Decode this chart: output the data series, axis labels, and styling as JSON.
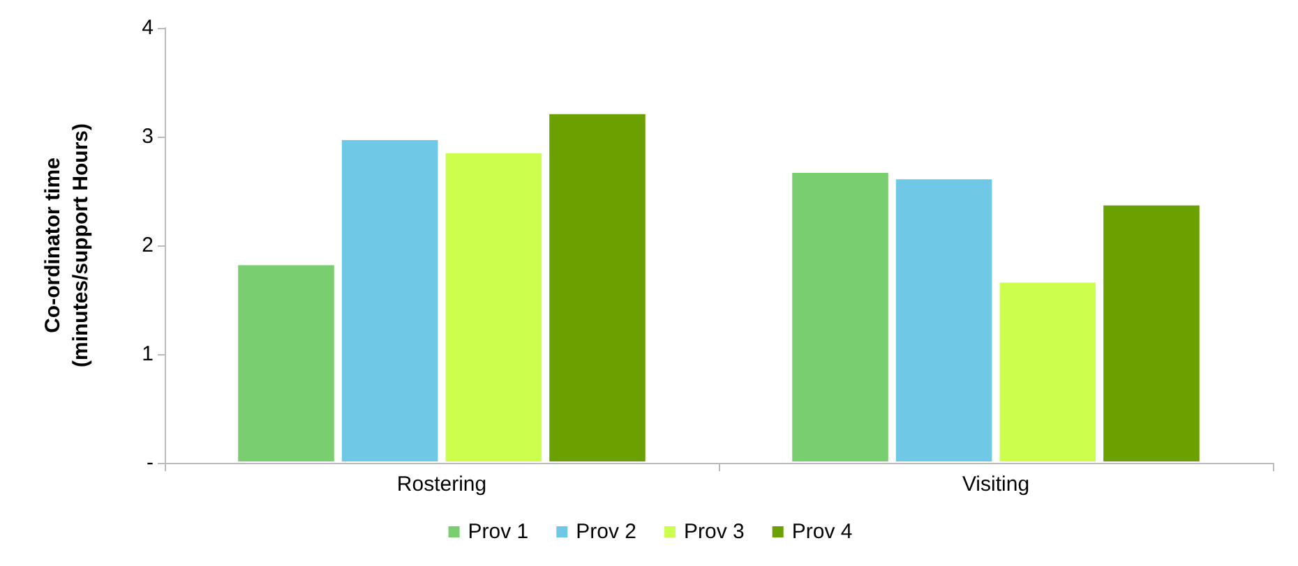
{
  "chart_data": {
    "type": "bar",
    "ylabel": "Co-ordinator time\n(minutes/support Hours)",
    "categories": [
      "Rostering",
      "Visiting"
    ],
    "series": [
      {
        "name": "Prov 1",
        "color": "#79cf6f",
        "values": [
          1.83,
          2.68
        ]
      },
      {
        "name": "Prov 2",
        "color": "#6fc8e6",
        "values": [
          2.98,
          2.62
        ]
      },
      {
        "name": "Prov 3",
        "color": "#ccff4d",
        "values": [
          2.86,
          1.67
        ]
      },
      {
        "name": "Prov 4",
        "color": "#6aa000",
        "values": [
          3.22,
          2.38
        ]
      }
    ],
    "ylim": [
      0,
      4
    ],
    "yticks": [
      {
        "value": 0,
        "label": "-"
      },
      1,
      2,
      3,
      4
    ],
    "grid": false,
    "legend": "bottom"
  }
}
